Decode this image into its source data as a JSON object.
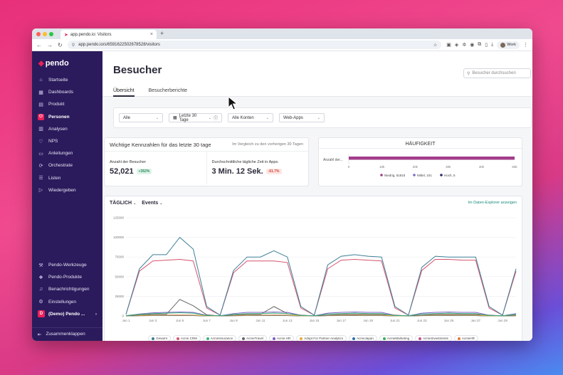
{
  "browser": {
    "tab_title": "app.pendo.io: Visitors",
    "url": "app.pendo.io/s/6591622502678528/visitors",
    "profile_label": "Work"
  },
  "sidebar": {
    "logo": "pendo",
    "items": [
      {
        "label": "Startseite",
        "icon": "home-icon",
        "active": false
      },
      {
        "label": "Dashboards",
        "icon": "dashboard-icon",
        "active": false
      },
      {
        "label": "Produkt",
        "icon": "product-icon",
        "active": false
      },
      {
        "label": "Personen",
        "icon": "people-icon",
        "active": true
      },
      {
        "label": "Analysen",
        "icon": "analytics-icon",
        "active": false
      },
      {
        "label": "NPS",
        "icon": "heart-icon",
        "active": false
      },
      {
        "label": "Anleitungen",
        "icon": "guide-icon",
        "active": false
      },
      {
        "label": "Orchestrate",
        "icon": "orchestrate-icon",
        "active": false
      },
      {
        "label": "Listen",
        "icon": "list-icon",
        "active": false
      },
      {
        "label": "Wiedergeben",
        "icon": "play-icon",
        "active": false
      }
    ],
    "bottom_items": [
      {
        "label": "Pendo-Werkzeuge",
        "icon": "tools-icon"
      },
      {
        "label": "Pendo-Produkte",
        "icon": "products-icon"
      },
      {
        "label": "Benachrichtigungen",
        "icon": "bell-icon"
      },
      {
        "label": "Einstellungen",
        "icon": "gear-icon"
      }
    ],
    "workspace": {
      "badge": "D",
      "label": "(Demo) Pendo ..."
    },
    "collapse_label": "Zusammenklappen"
  },
  "page": {
    "title": "Besucher",
    "search_placeholder": "Besucher durchsuchen",
    "tabs": [
      {
        "label": "Übersicht",
        "active": true
      },
      {
        "label": "Besucherberichte",
        "active": false
      }
    ]
  },
  "filters": {
    "segment": "Alle",
    "date_range": "Letzte 30 Tage",
    "accounts": "Alle Konten",
    "apps": "Web-Apps"
  },
  "kpis": {
    "title": "Wichtige Kennzahlen für das letzte 30 tage",
    "comparison": "Im Vergleich zu den vorherigen 30 Tagen",
    "items": [
      {
        "label": "Anzahl der Besucher",
        "value": "52,021",
        "change": "+352%",
        "direction": "up"
      },
      {
        "label": "Durchschnittliche tägliche Zeit in Apps.",
        "value": "3 Min. 12 Sek.",
        "change": "-61.7%",
        "direction": "down"
      }
    ]
  },
  "frequency": {
    "title": "HÄUFIGKEIT",
    "row_label": "Anzahl der...",
    "ticks": [
      "0",
      "10k",
      "20k",
      "30k",
      "40k",
      "50k"
    ],
    "legend": [
      {
        "label": "Niedrig, 51815",
        "color": "#a23c8a"
      },
      {
        "label": "Mittel, 101",
        "color": "#7a6fc0"
      },
      {
        "label": "Hoch, 5",
        "color": "#2b2b6b"
      }
    ]
  },
  "chart_header": {
    "interval": "TÄGLICH",
    "metric": "Events",
    "explorer_link": "Im Daten-Explorer anzeigen"
  },
  "chart_data": {
    "type": "line",
    "ylim": [
      0,
      125000
    ],
    "y_ticks": [
      "0",
      "25000",
      "50000",
      "75000",
      "100000",
      "125000"
    ],
    "x_ticks": [
      "Jun 1",
      "Jun 3",
      "Jun 5",
      "Jun 7",
      "Jun 9",
      "Jun 11",
      "Jun 13",
      "Jun 15",
      "Jun 17",
      "Jun 19",
      "Jun 21",
      "Jun 23",
      "Jun 25",
      "Jun 27",
      "Jun 29"
    ],
    "series": [
      {
        "name": "Gesamt",
        "color": "#3d7f97",
        "values": [
          2000,
          60000,
          78000,
          78000,
          100000,
          85000,
          12000,
          1000,
          58000,
          75000,
          75000,
          83000,
          75000,
          12000,
          1000,
          65000,
          76000,
          78000,
          76000,
          75000,
          12000,
          1000,
          62000,
          76000,
          75000,
          75000,
          75000,
          12000,
          1000,
          60000
        ]
      },
      {
        "name": "Acme CRM",
        "color": "#d6536d",
        "values": [
          2000,
          57000,
          70000,
          71000,
          72000,
          70000,
          10000,
          1000,
          55000,
          70000,
          70000,
          70000,
          68000,
          10000,
          1000,
          60000,
          71000,
          72000,
          71000,
          70000,
          10000,
          1000,
          58000,
          72000,
          72000,
          71000,
          71000,
          10000,
          1000,
          57000
        ]
      },
      {
        "name": "AcmeInsurance",
        "color": "#3bb37a",
        "values": [
          500,
          2000,
          3000,
          3500,
          4000,
          3500,
          500,
          200,
          2000,
          3000,
          3000,
          3500,
          3000,
          500,
          200,
          2500,
          3000,
          3500,
          3000,
          3000,
          500,
          200,
          2500,
          3000,
          3500,
          3000,
          3000,
          500,
          200,
          2000
        ]
      },
      {
        "name": "AcmeTravel",
        "color": "#666666",
        "values": [
          0,
          1000,
          2000,
          2000,
          21000,
          13000,
          1500,
          0,
          1000,
          2000,
          2000,
          12000,
          3000,
          1000,
          0,
          1000,
          2000,
          2000,
          2000,
          2000,
          1000,
          0,
          1000,
          2000,
          2000,
          2000,
          2000,
          1000,
          0,
          1000
        ]
      },
      {
        "name": "Acme HR",
        "color": "#7c5cc4",
        "values": [
          300,
          2500,
          4000,
          4500,
          5000,
          4500,
          800,
          200,
          3000,
          4500,
          4500,
          5000,
          4500,
          800,
          200,
          3500,
          4500,
          5000,
          4500,
          4500,
          800,
          200,
          3500,
          4500,
          5000,
          4500,
          4500,
          800,
          200,
          3000
        ]
      },
      {
        "name": "Adopt For Partner Analytics",
        "color": "#e8a83a",
        "values": [
          0,
          500,
          800,
          900,
          1000,
          900,
          100,
          0,
          600,
          800,
          900,
          1000,
          900,
          100,
          0,
          700,
          900,
          1000,
          900,
          900,
          100,
          0,
          700,
          900,
          1000,
          900,
          900,
          100,
          0,
          600
        ]
      },
      {
        "name": "AcmeJapan",
        "color": "#2f6fae",
        "values": [
          0,
          300,
          500,
          500,
          600,
          500,
          50,
          0,
          300,
          500,
          500,
          600,
          500,
          50,
          0,
          400,
          500,
          600,
          500,
          500,
          50,
          0,
          400,
          500,
          600,
          500,
          500,
          50,
          0,
          300
        ]
      },
      {
        "name": "AcmeMarketing",
        "color": "#3cae5c",
        "values": [
          0,
          400,
          700,
          800,
          900,
          800,
          80,
          0,
          500,
          700,
          800,
          900,
          800,
          80,
          0,
          600,
          800,
          900,
          800,
          800,
          80,
          0,
          600,
          800,
          900,
          800,
          800,
          80,
          0,
          500
        ]
      },
      {
        "name": "AcmeInvestments",
        "color": "#c2508f",
        "values": [
          0,
          600,
          1000,
          1100,
          1200,
          1100,
          100,
          0,
          700,
          1000,
          1100,
          1200,
          1100,
          100,
          0,
          800,
          1100,
          1200,
          1100,
          1100,
          100,
          0,
          800,
          1100,
          1200,
          1100,
          1100,
          100,
          0,
          700
        ]
      },
      {
        "name": "AcmeHR",
        "color": "#e07b3a",
        "values": [
          0,
          200,
          400,
          400,
          500,
          400,
          40,
          0,
          250,
          400,
          400,
          500,
          400,
          40,
          0,
          300,
          400,
          500,
          400,
          400,
          40,
          0,
          300,
          400,
          500,
          400,
          400,
          40,
          0,
          250
        ]
      }
    ]
  },
  "help_label": "?"
}
